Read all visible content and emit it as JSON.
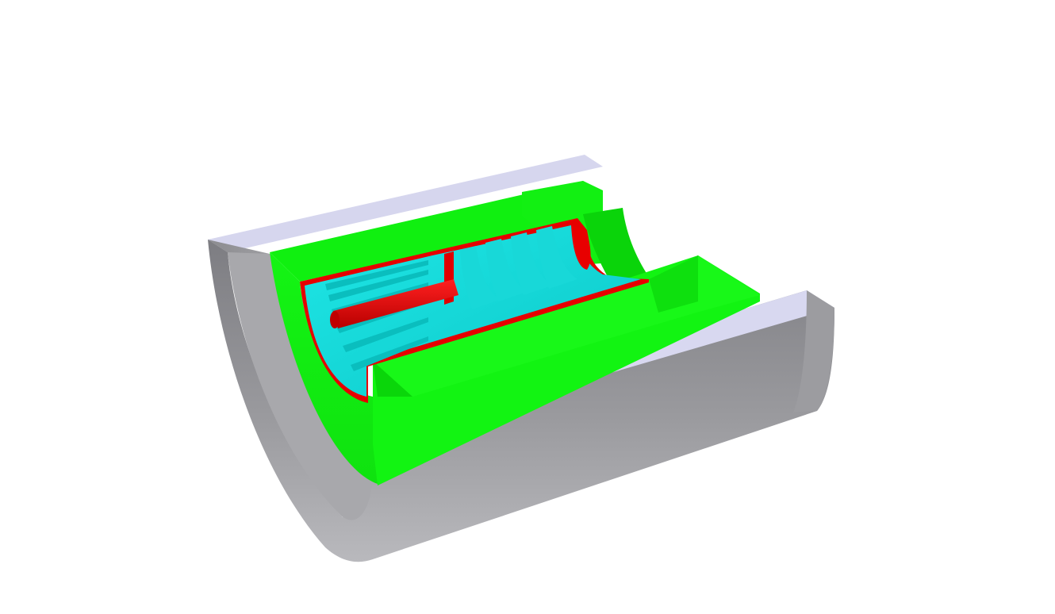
{
  "scene": {
    "background": "#ffffff",
    "model": "cutaway-cylindrical-assembly",
    "parts": [
      {
        "name": "outer-shell",
        "color": "#b8b8c0"
      },
      {
        "name": "outer-shell-top-face",
        "color": "#d4d4ec"
      },
      {
        "name": "green-liner",
        "color": "#12f412"
      },
      {
        "name": "red-lining",
        "color": "#ee0000"
      },
      {
        "name": "cyan-core",
        "color": "#12dcdc"
      },
      {
        "name": "red-rod",
        "color": "#dd0000"
      }
    ]
  }
}
